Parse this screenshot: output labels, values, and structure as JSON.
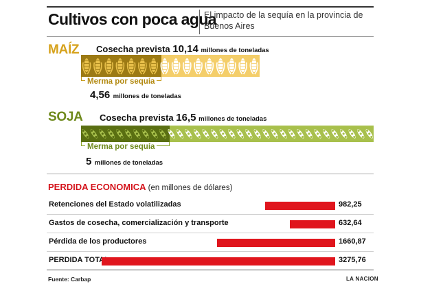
{
  "title": "Cultivos con poca agua",
  "subtitle": "El impacto de la sequía en la provincia de Buenos Aires",
  "chart_data": [
    {
      "type": "bar",
      "name": "MAÍZ",
      "harvest_label": "Cosecha prevista",
      "harvest_value": "10,14",
      "harvest_numeric": 10.14,
      "harvest_unit": "millones de toneladas",
      "loss_label": "Merma por sequía",
      "loss_value": "4,56",
      "loss_numeric": 4.56,
      "loss_unit": "millones de toneladas",
      "colors": {
        "crop": "#d6a21c",
        "loss": "#9c7a14",
        "remaining": "#f4ce6a",
        "grain_dark": "#e8c04a",
        "grain_light": "#ffffff"
      }
    },
    {
      "type": "bar",
      "name": "SOJA",
      "harvest_label": "Cosecha prevista",
      "harvest_value": "16,5",
      "harvest_numeric": 16.5,
      "harvest_unit": "millones de toneladas",
      "loss_label": "Merma por sequía",
      "loss_value": "5",
      "loss_numeric": 5,
      "loss_unit": "millones de toneladas",
      "colors": {
        "crop": "#6f8a1d",
        "loss": "#5a6f12",
        "remaining": "#a8c04c",
        "grain_dark": "#a8c04c",
        "grain_light": "#ffffff"
      }
    },
    {
      "type": "bar",
      "title": "PERDIDA ECONOMICA",
      "subtitle": "(en millones de dólares)",
      "categories": [
        "Retenciones del Estado volatilizadas",
        "Gastos de cosecha, comercialización y transporte",
        "Pérdida de los productores",
        "PERDIDA TOTAL"
      ],
      "values": [
        982.25,
        632.64,
        1660.87,
        3275.76
      ],
      "value_labels": [
        "982,25",
        "632,64",
        "1660,87",
        "3275,76"
      ],
      "colors": {
        "bar": "#e0151d"
      }
    }
  ],
  "footer": {
    "source": "Fuente: Carbap",
    "credit": "LA NACION"
  }
}
